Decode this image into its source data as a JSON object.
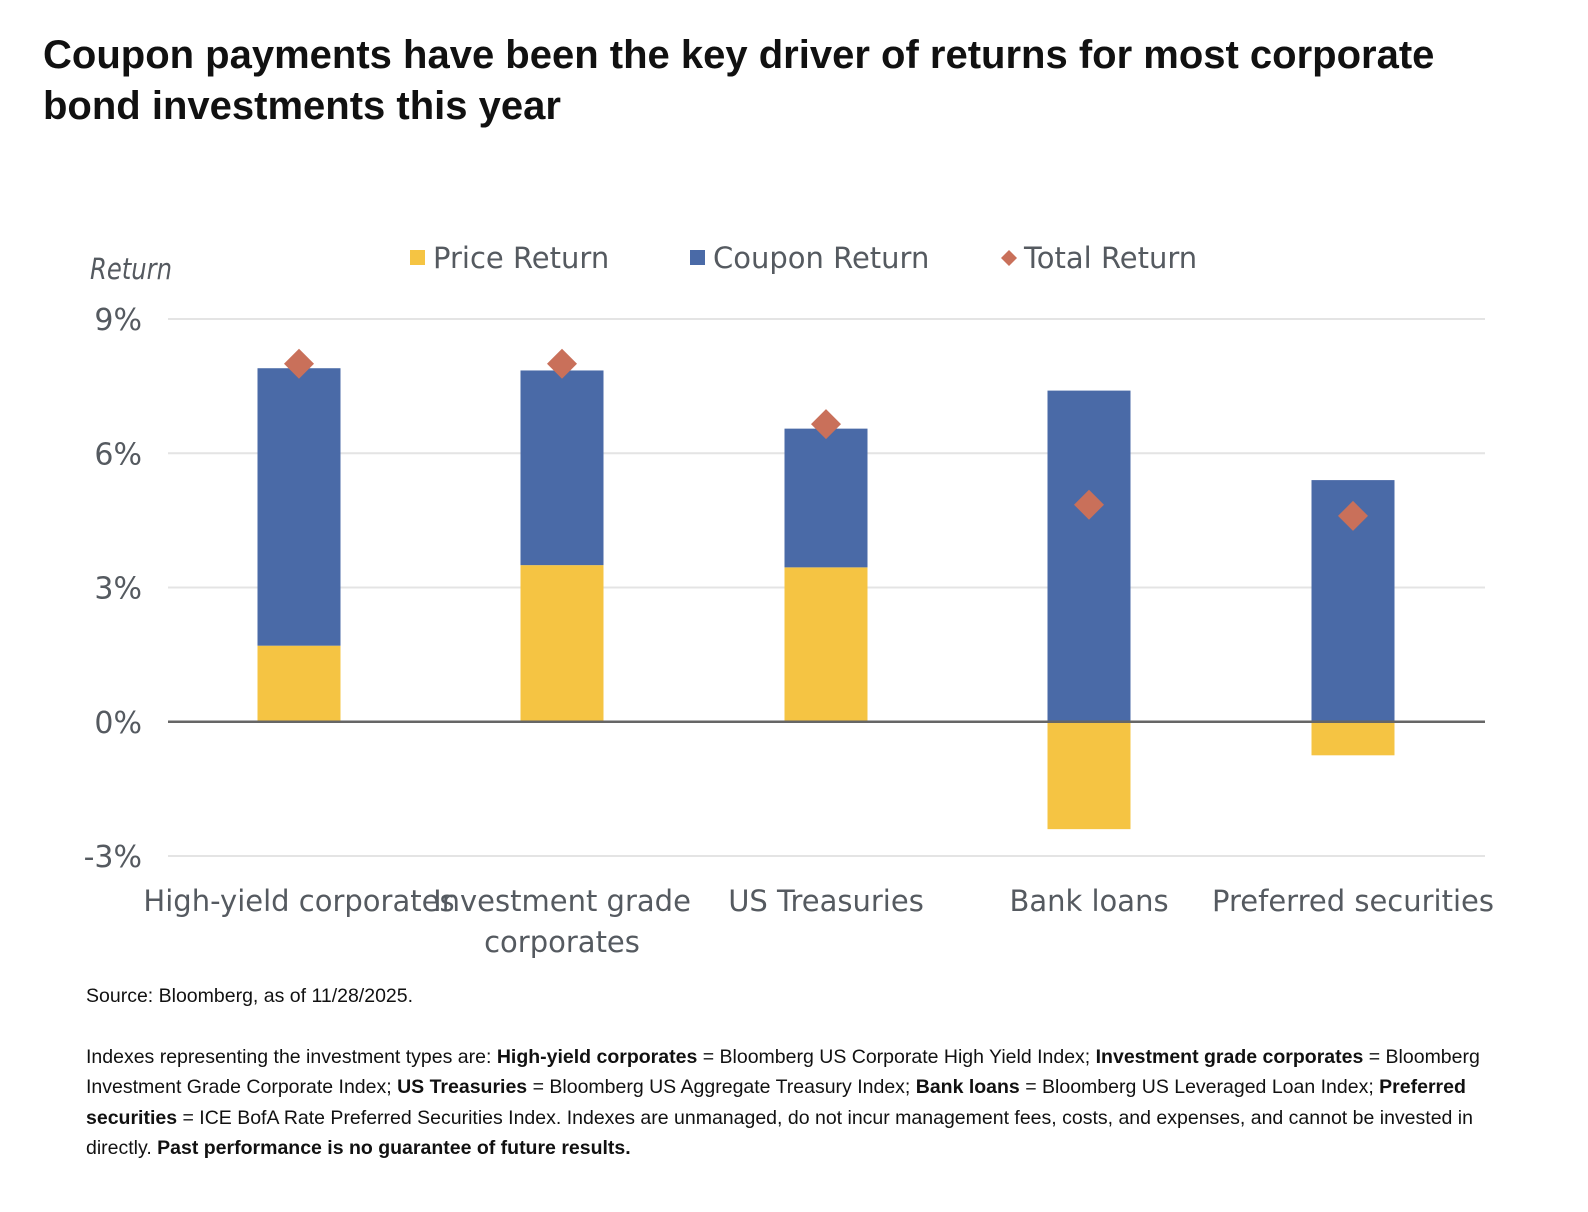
{
  "title": "Coupon payments have been the key driver of returns for most corporate bond investments this year",
  "source": "Source: Bloomberg, as of 11/28/2025.",
  "notes": {
    "p1": "Indexes representing the investment types are: ",
    "hy_label": "High-yield corporates",
    "hy_def": " = Bloomberg US Corporate High Yield Index; ",
    "ig_label": "Investment grade corporates",
    "ig_def": " = Bloomberg Investment Grade Corporate Index; ",
    "ust_label": "US Treasuries",
    "ust_def": " = Bloomberg US Aggregate Treasury Index; ",
    "bl_label": "Bank loans",
    "bl_def": " =  Bloomberg US Leveraged Loan Index; ",
    "pref_label": "Preferred securities",
    "pref_def": " = ICE BofA Rate Preferred Securities Index. Indexes are unmanaged, do not incur management fees, costs, and expenses, and cannot be invested in directly. ",
    "disclaimer": "Past performance is no guarantee of future results."
  },
  "colors": {
    "price": "#f5c443",
    "coupon": "#4a6aa7",
    "total": "#c9705a",
    "grid": "#e4e4e4",
    "zero_line": "#666666"
  },
  "chart_data": {
    "type": "bar",
    "stacked": true,
    "ylabel": "Return",
    "ylim": [
      -3,
      9
    ],
    "yticks": [
      9,
      6,
      3,
      0,
      -3
    ],
    "ytick_labels": [
      "9%",
      "6%",
      "3%",
      "0%",
      "-3%"
    ],
    "grid": true,
    "legend_position": "top",
    "categories": [
      [
        "High-yield corporates"
      ],
      [
        "Investment grade",
        "corporates"
      ],
      [
        "US Treasuries"
      ],
      [
        "Bank loans"
      ],
      [
        "Preferred securities"
      ]
    ],
    "series": [
      {
        "name": "Price Return",
        "kind": "bar",
        "values": [
          1.7,
          3.5,
          3.45,
          -2.4,
          -0.75
        ]
      },
      {
        "name": "Coupon Return",
        "kind": "bar",
        "values": [
          6.2,
          4.35,
          3.1,
          7.4,
          5.4
        ]
      },
      {
        "name": "Total Return",
        "kind": "marker",
        "values": [
          8.0,
          8.0,
          6.65,
          4.85,
          4.6
        ]
      }
    ]
  }
}
